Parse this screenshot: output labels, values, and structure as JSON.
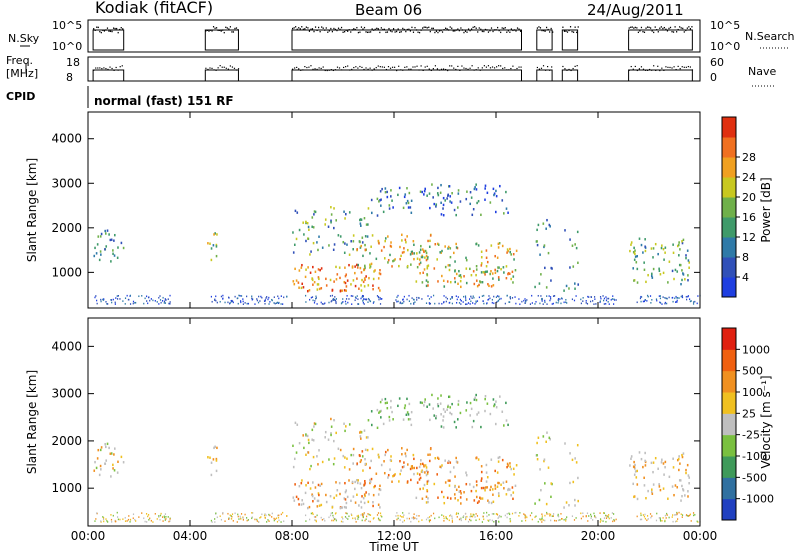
{
  "header": {
    "station": "Kodiak (fitACF)",
    "beam": "Beam 06",
    "date": "24/Aug/2011"
  },
  "params": {
    "nsky_label": "N.Sky",
    "nsearch_label": "N.Search",
    "freq_label_1": "Freq.",
    "freq_label_2": "[MHz]",
    "nave_label": "Nave",
    "cpid_label": "CPID",
    "mode_text": "normal (fast) 151 RF",
    "noise_ticks_left": [
      "10^5",
      "10^0"
    ],
    "noise_ticks_right": [
      "10^5",
      "10^0"
    ],
    "freq_ticks": [
      "18",
      "8"
    ],
    "nave_ticks": [
      "60",
      "0"
    ]
  },
  "chart_data": [
    {
      "type": "heatmap",
      "name": "power",
      "ylabel": "Slant Range [km]",
      "xlabel": "",
      "y_ticks": [
        "1000",
        "2000",
        "3000",
        "4000"
      ],
      "ylim": [
        200,
        4600
      ],
      "colorbar_label": "Power [dB]",
      "colorbar_ticks": [
        "4",
        "8",
        "12",
        "16",
        "20",
        "24",
        "28"
      ],
      "colorbar_colors": [
        "#1f3fe0",
        "#3050b8",
        "#2f7aa8",
        "#3f9a6a",
        "#6fb04a",
        "#c8c820",
        "#f0a020",
        "#f07020",
        "#e03010"
      ]
    },
    {
      "type": "heatmap",
      "name": "velocity",
      "ylabel": "Slant Range [km]",
      "xlabel": "Time UT",
      "x_ticks": [
        "00:00",
        "04:00",
        "08:00",
        "12:00",
        "16:00",
        "20:00",
        "00:00"
      ],
      "y_ticks": [
        "1000",
        "2000",
        "3000",
        "4000"
      ],
      "ylim": [
        200,
        4600
      ],
      "colorbar_label": "Velocity [m s⁻¹]",
      "colorbar_ticks": [
        "1000",
        "500",
        "100",
        "25",
        "-25",
        "-100",
        "-500",
        "-1000"
      ],
      "colorbar_colors": [
        "#2040c0",
        "#3070a0",
        "#3f9a5a",
        "#7ac040",
        "#bfbfbf",
        "#f0c020",
        "#f09020",
        "#f06010",
        "#e02010"
      ]
    }
  ]
}
